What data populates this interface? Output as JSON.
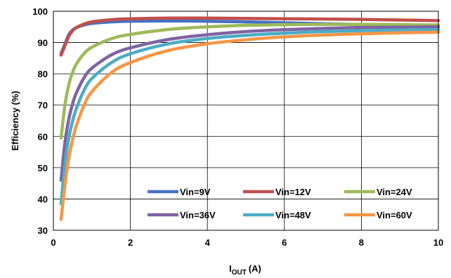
{
  "chart_data": {
    "type": "line",
    "title": "",
    "xlabel": "I",
    "xlabel_sub": "OUT",
    "xlabel_unit": "(A)",
    "ylabel": "Efficiency (%)",
    "xlim": [
      0,
      10
    ],
    "ylim": [
      30,
      100
    ],
    "x_ticks": [
      0,
      2,
      4,
      6,
      8,
      10
    ],
    "y_ticks": [
      30,
      40,
      50,
      60,
      70,
      80,
      90,
      100
    ],
    "grid": true,
    "legend_position": "bottom-right",
    "series": [
      {
        "name": "Vin=9V",
        "color": "#4472C4",
        "x": [
          0.2,
          0.3,
          0.4,
          0.5,
          0.6,
          0.8,
          1.0,
          1.5,
          2,
          3,
          4,
          5,
          6,
          7,
          8,
          9,
          10
        ],
        "y": [
          86.5,
          89.5,
          92.5,
          94.0,
          94.8,
          95.6,
          96.1,
          96.6,
          96.8,
          96.9,
          96.8,
          96.6,
          96.3,
          96.0,
          95.7,
          95.3,
          95.0
        ]
      },
      {
        "name": "Vin=12V",
        "color": "#C0504D",
        "x": [
          0.2,
          0.3,
          0.4,
          0.5,
          0.6,
          0.8,
          1.0,
          1.5,
          2,
          3,
          4,
          5,
          6,
          7,
          8,
          9,
          10
        ],
        "y": [
          86.0,
          89.0,
          92.0,
          93.8,
          94.8,
          95.9,
          96.6,
          97.3,
          97.6,
          97.8,
          97.8,
          97.7,
          97.6,
          97.5,
          97.4,
          97.2,
          97.0
        ]
      },
      {
        "name": "Vin=24V",
        "color": "#9BBB59",
        "x": [
          0.2,
          0.3,
          0.4,
          0.5,
          0.6,
          0.8,
          1.0,
          1.5,
          2,
          3,
          4,
          5,
          6,
          7,
          8,
          9,
          10
        ],
        "y": [
          59.5,
          70.0,
          76.5,
          80.5,
          83.2,
          86.5,
          88.5,
          91.2,
          92.6,
          94.2,
          95.0,
          95.5,
          95.7,
          95.8,
          95.8,
          95.7,
          95.6
        ]
      },
      {
        "name": "Vin=36V",
        "color": "#8064A2",
        "x": [
          0.2,
          0.3,
          0.4,
          0.5,
          0.6,
          0.8,
          1.0,
          1.5,
          2,
          3,
          4,
          5,
          6,
          7,
          8,
          9,
          10
        ],
        "y": [
          46.0,
          58.0,
          65.5,
          70.5,
          74.0,
          78.8,
          81.8,
          86.0,
          88.3,
          91.0,
          92.5,
          93.5,
          94.1,
          94.5,
          94.8,
          94.9,
          95.0
        ]
      },
      {
        "name": "Vin=48V",
        "color": "#4BACC6",
        "x": [
          0.2,
          0.3,
          0.4,
          0.5,
          0.6,
          0.8,
          1.0,
          1.5,
          2,
          3,
          4,
          5,
          6,
          7,
          8,
          9,
          10
        ],
        "y": [
          38.5,
          51.0,
          59.5,
          65.0,
          69.0,
          74.8,
          78.5,
          83.5,
          86.4,
          89.6,
          91.3,
          92.3,
          93.0,
          93.5,
          93.8,
          94.0,
          94.1
        ]
      },
      {
        "name": "Vin=60V",
        "color": "#F79646",
        "x": [
          0.2,
          0.3,
          0.4,
          0.5,
          0.6,
          0.8,
          1.0,
          1.5,
          2,
          3,
          4,
          5,
          6,
          7,
          8,
          9,
          10
        ],
        "y": [
          33.5,
          44.5,
          53.0,
          59.0,
          63.5,
          70.0,
          74.3,
          80.3,
          83.6,
          87.5,
          89.6,
          90.9,
          91.8,
          92.4,
          92.8,
          93.1,
          93.3
        ]
      }
    ]
  }
}
